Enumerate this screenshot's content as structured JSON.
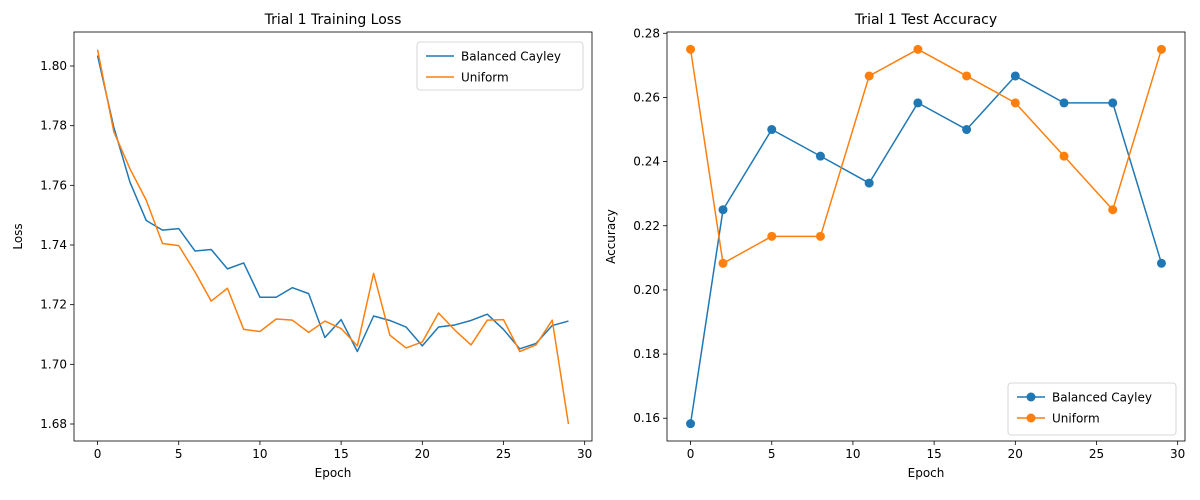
{
  "chart_data": [
    {
      "type": "line",
      "title": "Trial 1 Training Loss",
      "xlabel": "Epoch",
      "ylabel": "Loss",
      "xlim": [
        -1.45,
        30.45
      ],
      "ylim": [
        1.6743,
        1.8114
      ],
      "xticks": [
        0,
        5,
        10,
        15,
        20,
        25,
        30
      ],
      "yticks": [
        1.68,
        1.7,
        1.72,
        1.74,
        1.76,
        1.78,
        1.8
      ],
      "ytick_labels": [
        "1.68",
        "1.70",
        "1.72",
        "1.74",
        "1.76",
        "1.78",
        "1.80"
      ],
      "grid": false,
      "legend_position": "top-right",
      "x": [
        0,
        1,
        2,
        3,
        4,
        5,
        6,
        7,
        8,
        9,
        10,
        11,
        12,
        13,
        14,
        15,
        16,
        17,
        18,
        19,
        20,
        21,
        22,
        23,
        24,
        25,
        26,
        27,
        28,
        29
      ],
      "series": [
        {
          "name": "Balanced Cayley",
          "color": "#1f77b4",
          "marker": "none",
          "values": [
            1.8035,
            1.7795,
            1.761,
            1.7482,
            1.745,
            1.7455,
            1.738,
            1.7385,
            1.732,
            1.734,
            1.7225,
            1.7225,
            1.7257,
            1.7237,
            1.709,
            1.715,
            1.7043,
            1.7162,
            1.7147,
            1.7125,
            1.7062,
            1.7125,
            1.7132,
            1.7147,
            1.7168,
            1.7117,
            1.7052,
            1.707,
            1.713,
            1.7145
          ]
        },
        {
          "name": "Uniform",
          "color": "#ff7f0e",
          "marker": "none",
          "values": [
            1.8055,
            1.778,
            1.7655,
            1.755,
            1.7405,
            1.7398,
            1.731,
            1.7212,
            1.7255,
            1.7117,
            1.711,
            1.7152,
            1.7148,
            1.7107,
            1.7145,
            1.712,
            1.7062,
            1.7305,
            1.7098,
            1.7055,
            1.7075,
            1.7172,
            1.7115,
            1.7065,
            1.7148,
            1.715,
            1.7043,
            1.7065,
            1.7148,
            1.68
          ]
        }
      ]
    },
    {
      "type": "line",
      "title": "Trial 1 Test Accuracy",
      "xlabel": "Epoch",
      "ylabel": "Accuracy",
      "xlim": [
        -1.45,
        30.45
      ],
      "ylim": [
        0.1529,
        0.2804
      ],
      "xticks": [
        0,
        5,
        10,
        15,
        20,
        25,
        30
      ],
      "yticks": [
        0.16,
        0.18,
        0.2,
        0.22,
        0.24,
        0.26,
        0.28
      ],
      "ytick_labels": [
        "0.16",
        "0.18",
        "0.20",
        "0.22",
        "0.24",
        "0.26",
        "0.28"
      ],
      "grid": false,
      "legend_position": "bottom-right",
      "x": [
        0,
        2,
        5,
        8,
        11,
        14,
        17,
        20,
        23,
        26,
        29
      ],
      "series": [
        {
          "name": "Balanced Cayley",
          "color": "#1f77b4",
          "marker": "circle",
          "values": [
            0.1583,
            0.225,
            0.25,
            0.2417,
            0.2333,
            0.2583,
            0.25,
            0.2667,
            0.2583,
            0.2583,
            0.2083
          ]
        },
        {
          "name": "Uniform",
          "color": "#ff7f0e",
          "marker": "circle",
          "values": [
            0.275,
            0.2083,
            0.2167,
            0.2167,
            0.2667,
            0.275,
            0.2667,
            0.2583,
            0.2417,
            0.225,
            0.275
          ]
        }
      ]
    }
  ]
}
